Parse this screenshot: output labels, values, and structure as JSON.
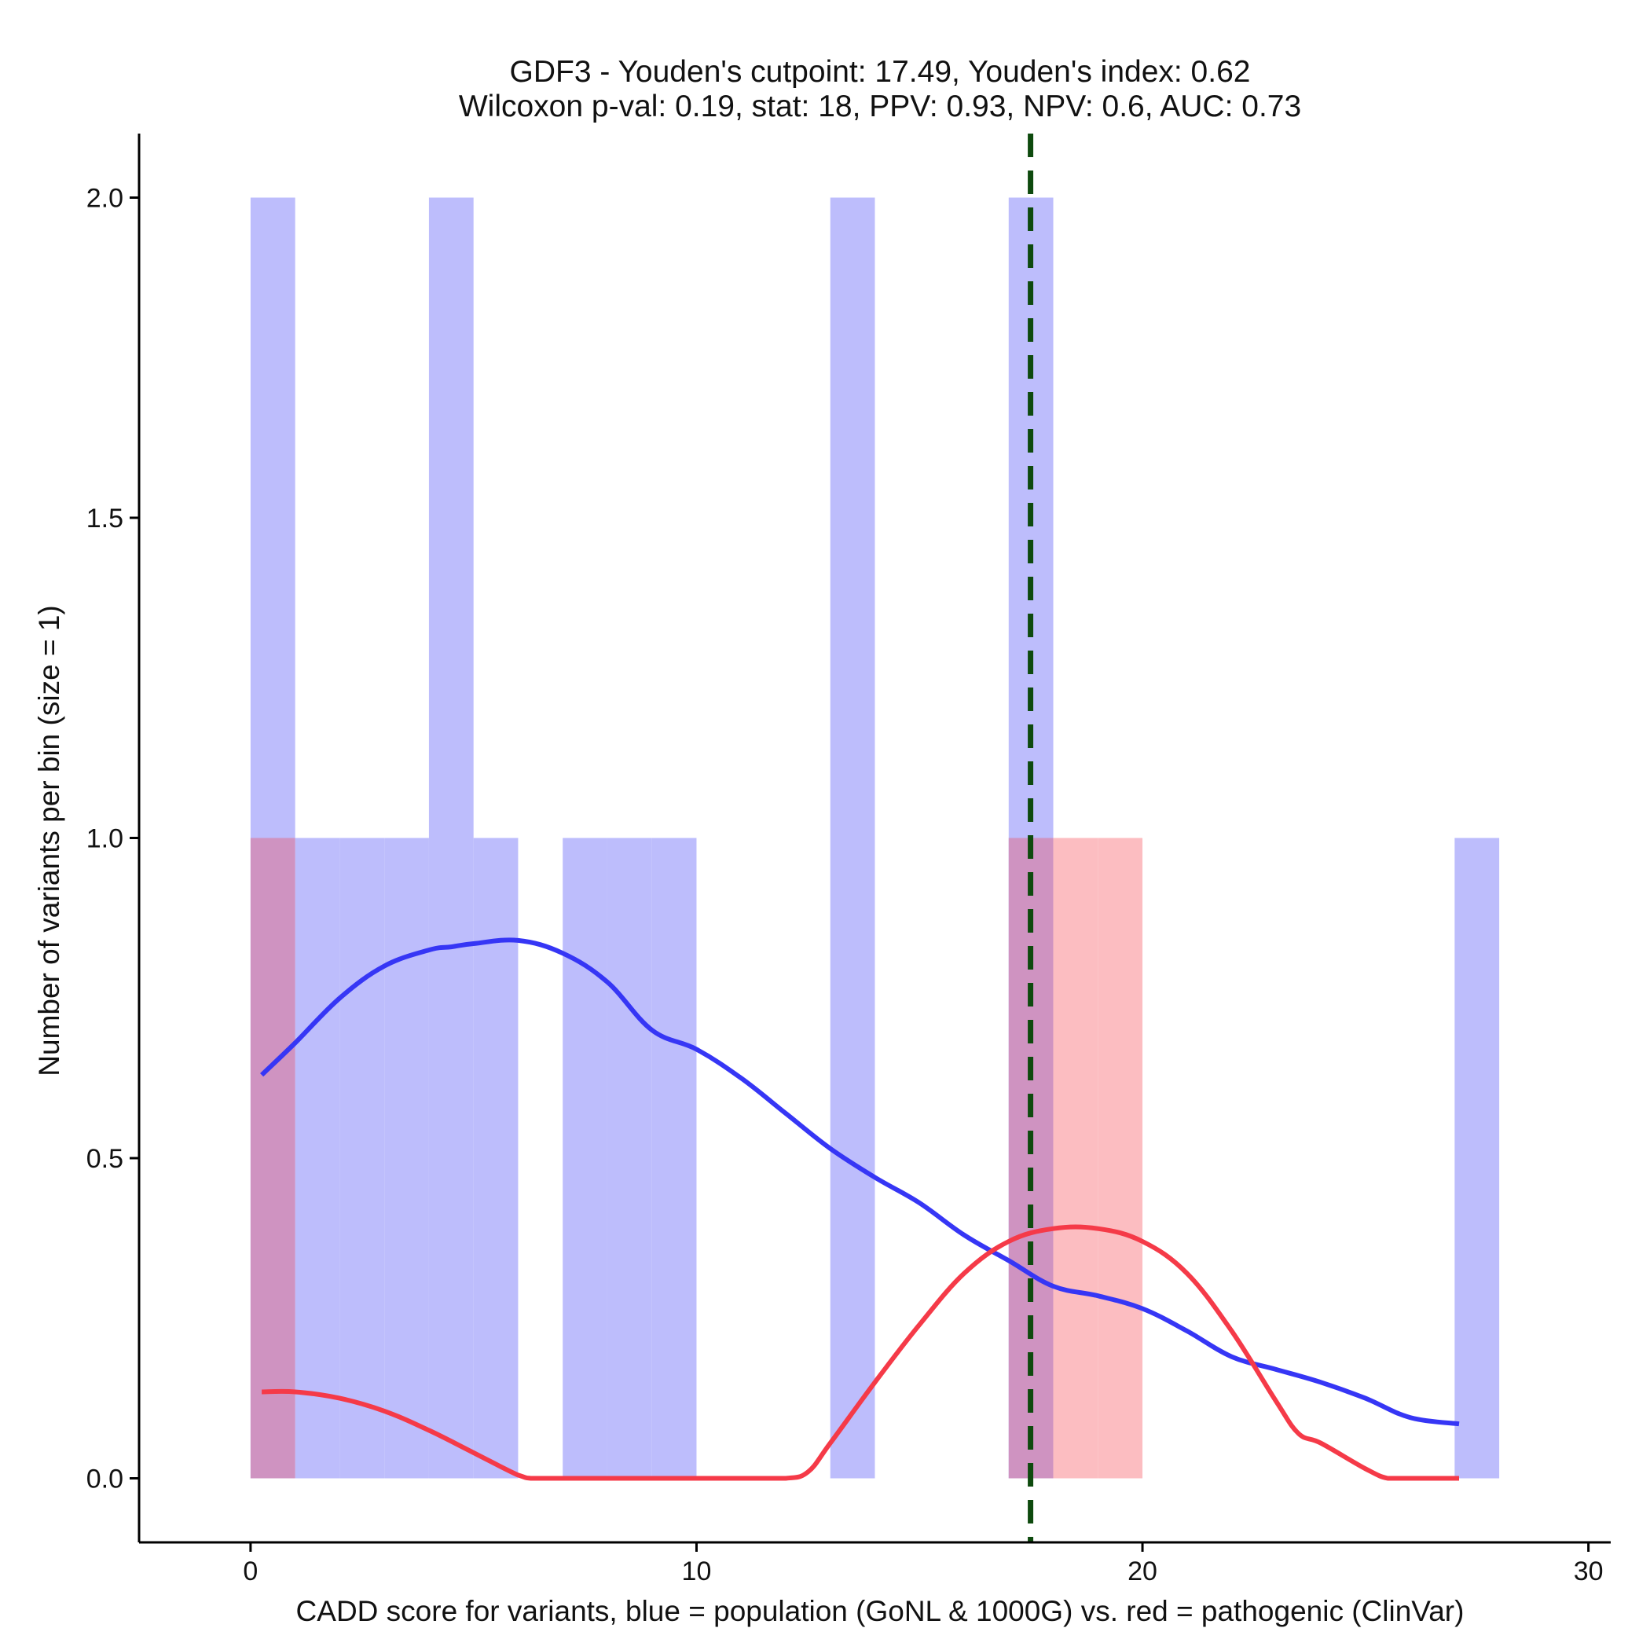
{
  "chart_data": {
    "type": "histogram",
    "title_line1": "GDF3 - Youden's cutpoint: 17.49, Youden's index: 0.62",
    "title_line2": "Wilcoxon p-val: 0.19, stat: 18, PPV: 0.93, NPV: 0.6, AUC: 0.73",
    "xlabel": "CADD score for variants, blue = population (GoNL & 1000G) vs. red = pathogenic (ClinVar)",
    "ylabel": "Number of variants per bin (size = 1)",
    "xlim": [
      -2.5,
      30.5
    ],
    "ylim": [
      -0.1,
      2.1
    ],
    "xticks": [
      0,
      10,
      20,
      30
    ],
    "xtick_labels": [
      "0",
      "10",
      "20",
      "30"
    ],
    "yticks": [
      0,
      0.5,
      1,
      1.5,
      2
    ],
    "ytick_labels": [
      "0.0",
      "0.5",
      "1.0",
      "1.5",
      "2.0"
    ],
    "bin_size": 1,
    "cutpoint": 17.49,
    "colors": {
      "population_bar": "#bdbdfc",
      "pathogenic_bar": "#fcbdc1",
      "overlap_bar": "#cf93c1",
      "population_curve": "#3636f5",
      "pathogenic_curve": "#f53a48",
      "cutpoint_line": "#0e4a0e",
      "axis": "#000000"
    },
    "series": [
      {
        "name": "population (GoNL & 1000G)",
        "bins": [
          {
            "x0": 0,
            "x1": 1,
            "count": 2
          },
          {
            "x0": 1,
            "x1": 2,
            "count": 1
          },
          {
            "x0": 2,
            "x1": 3,
            "count": 1
          },
          {
            "x0": 3,
            "x1": 4,
            "count": 1
          },
          {
            "x0": 4,
            "x1": 5,
            "count": 2
          },
          {
            "x0": 5,
            "x1": 6,
            "count": 1
          },
          {
            "x0": 7,
            "x1": 8,
            "count": 1
          },
          {
            "x0": 8,
            "x1": 9,
            "count": 1
          },
          {
            "x0": 9,
            "x1": 10,
            "count": 1
          },
          {
            "x0": 13,
            "x1": 14,
            "count": 2
          },
          {
            "x0": 17,
            "x1": 18,
            "count": 2
          },
          {
            "x0": 27,
            "x1": 28,
            "count": 1
          }
        ]
      },
      {
        "name": "pathogenic (ClinVar)",
        "bins": [
          {
            "x0": 0,
            "x1": 1,
            "count": 1
          },
          {
            "x0": 17,
            "x1": 18,
            "count": 1
          },
          {
            "x0": 18,
            "x1": 19,
            "count": 1
          },
          {
            "x0": 19,
            "x1": 20,
            "count": 1
          }
        ]
      }
    ],
    "density_curves": [
      {
        "name": "population (GoNL & 1000G)",
        "points": [
          [
            0.25,
            0.63
          ],
          [
            1,
            0.68
          ],
          [
            2,
            0.75
          ],
          [
            3,
            0.8
          ],
          [
            4,
            0.825
          ],
          [
            4.5,
            0.83
          ],
          [
            5,
            0.835
          ],
          [
            6,
            0.84
          ],
          [
            7,
            0.82
          ],
          [
            8,
            0.775
          ],
          [
            9,
            0.7
          ],
          [
            10,
            0.67
          ],
          [
            11,
            0.625
          ],
          [
            12,
            0.57
          ],
          [
            13,
            0.515
          ],
          [
            14,
            0.47
          ],
          [
            15,
            0.43
          ],
          [
            16,
            0.38
          ],
          [
            17,
            0.34
          ],
          [
            18,
            0.3
          ],
          [
            19,
            0.285
          ],
          [
            20,
            0.265
          ],
          [
            21,
            0.23
          ],
          [
            22,
            0.19
          ],
          [
            23,
            0.17
          ],
          [
            24,
            0.15
          ],
          [
            25,
            0.125
          ],
          [
            26,
            0.095
          ],
          [
            27.1,
            0.085
          ]
        ]
      },
      {
        "name": "pathogenic (ClinVar)",
        "points": [
          [
            0.25,
            0.135
          ],
          [
            1,
            0.135
          ],
          [
            2,
            0.125
          ],
          [
            3,
            0.105
          ],
          [
            4,
            0.075
          ],
          [
            5,
            0.04
          ],
          [
            6,
            0.005
          ],
          [
            6.3,
            0
          ],
          [
            7,
            0
          ],
          [
            8,
            0
          ],
          [
            9,
            0
          ],
          [
            10,
            0
          ],
          [
            11,
            0
          ],
          [
            12,
            0
          ],
          [
            12.5,
            0.01
          ],
          [
            13,
            0.055
          ],
          [
            14,
            0.15
          ],
          [
            15,
            0.24
          ],
          [
            16,
            0.32
          ],
          [
            17,
            0.37
          ],
          [
            18,
            0.39
          ],
          [
            19,
            0.39
          ],
          [
            20,
            0.37
          ],
          [
            21,
            0.32
          ],
          [
            22,
            0.23
          ],
          [
            23,
            0.12
          ],
          [
            23.5,
            0.07
          ],
          [
            24,
            0.055
          ],
          [
            25,
            0.015
          ],
          [
            25.5,
            0
          ],
          [
            26,
            0
          ],
          [
            27.1,
            0
          ]
        ]
      }
    ]
  }
}
